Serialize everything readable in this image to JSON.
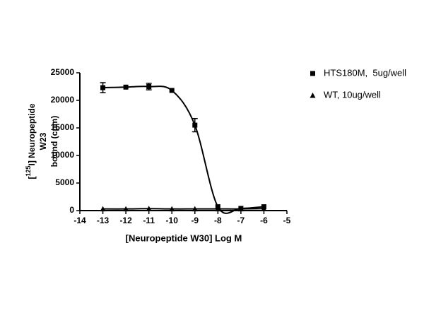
{
  "chart_data": {
    "type": "scatter",
    "xlabel": "[Neuropeptide W30] Log M",
    "ylabel": {
      "open": "[",
      "sup": "125",
      "rest": "I] Neuropeptide",
      "line2": "W23",
      "line3": "bound (cpm)"
    },
    "xlim": [
      -14,
      -5
    ],
    "xticks": [
      -14,
      -13,
      -12,
      -11,
      -10,
      -9,
      -8,
      -7,
      -6,
      -5
    ],
    "ylim": [
      0,
      25000
    ],
    "yticks": [
      0,
      5000,
      10000,
      15000,
      20000,
      25000
    ],
    "legend": "upper right",
    "series": [
      {
        "name": "HTS180M,  5ug/well",
        "marker": "square",
        "color": "#000000",
        "x": [
          -13,
          -12,
          -11,
          -10,
          -9,
          -8,
          -7,
          -6
        ],
        "values": [
          22300,
          22400,
          22500,
          21800,
          15500,
          700,
          400,
          700
        ],
        "errors": [
          900,
          null,
          600,
          null,
          1200,
          null,
          null,
          null
        ]
      },
      {
        "name": "WT, 10ug/well",
        "marker": "triangle",
        "color": "#000000",
        "x": [
          -13,
          -12,
          -11,
          -10,
          -9,
          -8,
          -7,
          -6
        ],
        "values": [
          300,
          300,
          350,
          300,
          300,
          300,
          300,
          350
        ],
        "errors": [
          null,
          null,
          null,
          null,
          null,
          null,
          null,
          null
        ]
      }
    ]
  }
}
